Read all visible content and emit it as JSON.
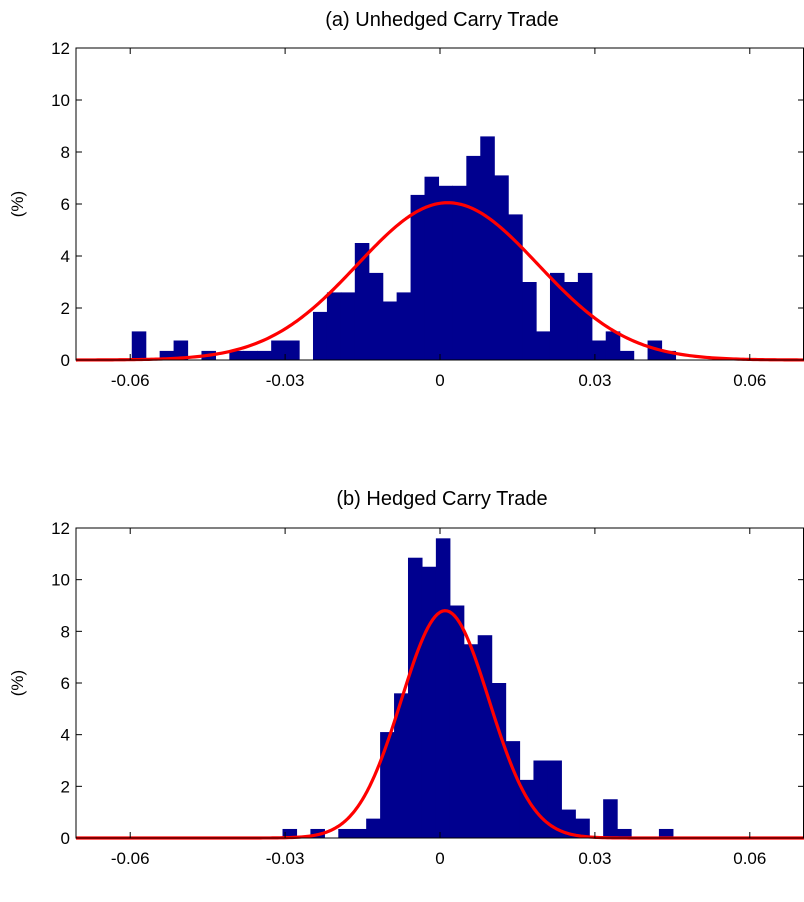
{
  "chart_data": [
    {
      "type": "histogram",
      "title": "(a) Unhedged Carry Trade",
      "ylabel": "(%)",
      "xlim": [
        -0.0705,
        0.0705
      ],
      "ylim": [
        0,
        12
      ],
      "xticks": [
        -0.06,
        -0.03,
        0,
        0.03,
        0.06
      ],
      "xtick_labels": [
        "-0.06",
        "-0.03",
        "0",
        "0.03",
        "0.06"
      ],
      "yticks": [
        0,
        2,
        4,
        6,
        8,
        10,
        12
      ],
      "ytick_labels": [
        "0",
        "2",
        "4",
        "6",
        "8",
        "10",
        "12"
      ],
      "bin_width": 0.0027,
      "bins": [
        {
          "x0": -0.0597,
          "value": 1.1
        },
        {
          "x0": -0.057,
          "value": 0.0
        },
        {
          "x0": -0.0543,
          "value": 0.35
        },
        {
          "x0": -0.0516,
          "value": 0.75
        },
        {
          "x0": -0.0489,
          "value": 0.0
        },
        {
          "x0": -0.0462,
          "value": 0.35
        },
        {
          "x0": -0.0435,
          "value": 0.0
        },
        {
          "x0": -0.0408,
          "value": 0.35
        },
        {
          "x0": -0.0381,
          "value": 0.35
        },
        {
          "x0": -0.0354,
          "value": 0.35
        },
        {
          "x0": -0.0327,
          "value": 0.75
        },
        {
          "x0": -0.03,
          "value": 0.75
        },
        {
          "x0": -0.0273,
          "value": 0.0
        },
        {
          "x0": -0.0246,
          "value": 1.85
        },
        {
          "x0": -0.0219,
          "value": 2.6
        },
        {
          "x0": -0.0192,
          "value": 2.6
        },
        {
          "x0": -0.0165,
          "value": 4.5
        },
        {
          "x0": -0.0138,
          "value": 3.35
        },
        {
          "x0": -0.0111,
          "value": 2.25
        },
        {
          "x0": -0.0084,
          "value": 2.6
        },
        {
          "x0": -0.0057,
          "value": 6.35
        },
        {
          "x0": -0.003,
          "value": 7.05
        },
        {
          "x0": -0.0003,
          "value": 6.7
        },
        {
          "x0": 0.0024,
          "value": 6.7
        },
        {
          "x0": 0.0051,
          "value": 7.85
        },
        {
          "x0": 0.0078,
          "value": 8.6
        },
        {
          "x0": 0.0105,
          "value": 7.1
        },
        {
          "x0": 0.0132,
          "value": 5.6
        },
        {
          "x0": 0.0159,
          "value": 3.0
        },
        {
          "x0": 0.0186,
          "value": 1.1
        },
        {
          "x0": 0.0213,
          "value": 3.35
        },
        {
          "x0": 0.024,
          "value": 3.0
        },
        {
          "x0": 0.0267,
          "value": 3.35
        },
        {
          "x0": 0.0294,
          "value": 0.75
        },
        {
          "x0": 0.0321,
          "value": 1.1
        },
        {
          "x0": 0.0348,
          "value": 0.35
        },
        {
          "x0": 0.0375,
          "value": 0.0
        },
        {
          "x0": 0.0402,
          "value": 0.75
        },
        {
          "x0": 0.0429,
          "value": 0.35
        }
      ],
      "normal_fit": {
        "mean": 0.0015,
        "sd": 0.0175,
        "peak": 6.05
      }
    },
    {
      "type": "histogram",
      "title": "(b) Hedged Carry Trade",
      "ylabel": "(%)",
      "xlim": [
        -0.0705,
        0.0705
      ],
      "ylim": [
        0,
        12
      ],
      "xticks": [
        -0.06,
        -0.03,
        0,
        0.03,
        0.06
      ],
      "xtick_labels": [
        "-0.06",
        "-0.03",
        "0",
        "0.03",
        "0.06"
      ],
      "yticks": [
        0,
        2,
        4,
        6,
        8,
        10,
        12
      ],
      "ytick_labels": [
        "0",
        "2",
        "4",
        "6",
        "8",
        "10",
        "12"
      ],
      "bin_width": 0.0027,
      "bins": [
        {
          "x0": -0.0305,
          "value": 0.35
        },
        {
          "x0": -0.0278,
          "value": 0.0
        },
        {
          "x0": -0.0251,
          "value": 0.35
        },
        {
          "x0": -0.0224,
          "value": 0.0
        },
        {
          "x0": -0.0197,
          "value": 0.35
        },
        {
          "x0": -0.017,
          "value": 0.35
        },
        {
          "x0": -0.0143,
          "value": 0.75
        },
        {
          "x0": -0.0116,
          "value": 4.1
        },
        {
          "x0": -0.0089,
          "value": 5.6
        },
        {
          "x0": -0.0062,
          "value": 10.85
        },
        {
          "x0": -0.0035,
          "value": 10.5
        },
        {
          "x0": -0.0008,
          "value": 11.6
        },
        {
          "x0": 0.0019,
          "value": 9.0
        },
        {
          "x0": 0.0046,
          "value": 7.5
        },
        {
          "x0": 0.0073,
          "value": 7.85
        },
        {
          "x0": 0.01,
          "value": 6.0
        },
        {
          "x0": 0.0127,
          "value": 3.75
        },
        {
          "x0": 0.0154,
          "value": 2.25
        },
        {
          "x0": 0.0181,
          "value": 3.0
        },
        {
          "x0": 0.0208,
          "value": 3.0
        },
        {
          "x0": 0.0235,
          "value": 1.1
        },
        {
          "x0": 0.0262,
          "value": 0.75
        },
        {
          "x0": 0.0289,
          "value": 0.0
        },
        {
          "x0": 0.0316,
          "value": 1.5
        },
        {
          "x0": 0.0343,
          "value": 0.35
        },
        {
          "x0": 0.037,
          "value": 0.0
        },
        {
          "x0": 0.0397,
          "value": 0.0
        },
        {
          "x0": 0.0424,
          "value": 0.35
        }
      ],
      "normal_fit": {
        "mean": 0.001,
        "sd": 0.0085,
        "peak": 8.8
      }
    }
  ],
  "colors": {
    "bars": "#00008F",
    "curve": "#FF0000",
    "axes": "#000000",
    "background": "#FFFFFF"
  }
}
